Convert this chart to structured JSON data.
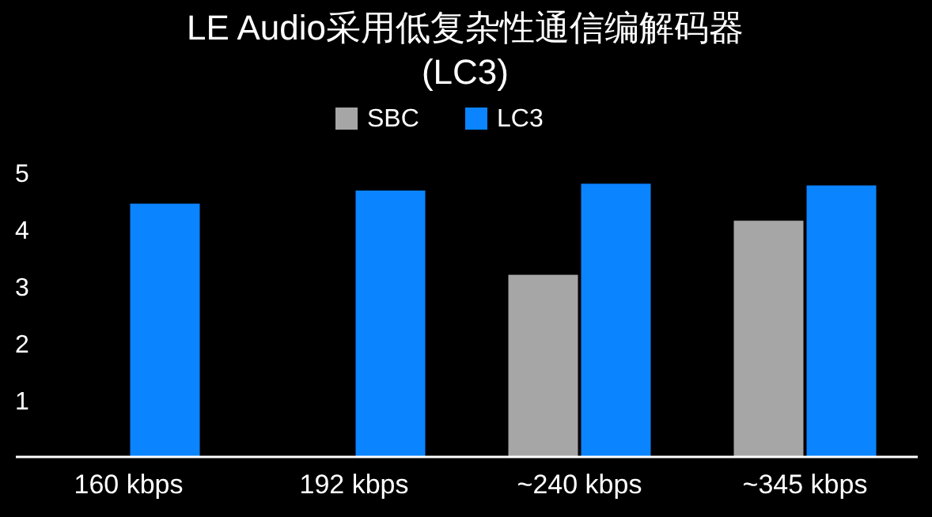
{
  "chart_data": {
    "type": "bar",
    "title": "LE Audio采用低复杂性通信编解码器 (LC3)",
    "categories": [
      "160 kbps",
      "192 kbps",
      "~240 kbps",
      "~345 kbps"
    ],
    "series": [
      {
        "name": "SBC",
        "color": "#a6a6a6",
        "values": [
          null,
          null,
          3.2,
          4.15
        ]
      },
      {
        "name": "LC3",
        "color": "#0a84ff",
        "values": [
          4.45,
          4.68,
          4.8,
          4.77
        ]
      }
    ],
    "ylim": [
      0,
      5
    ],
    "yticks": [
      1,
      2,
      3,
      4,
      5
    ],
    "legend": "top",
    "grid": false
  }
}
